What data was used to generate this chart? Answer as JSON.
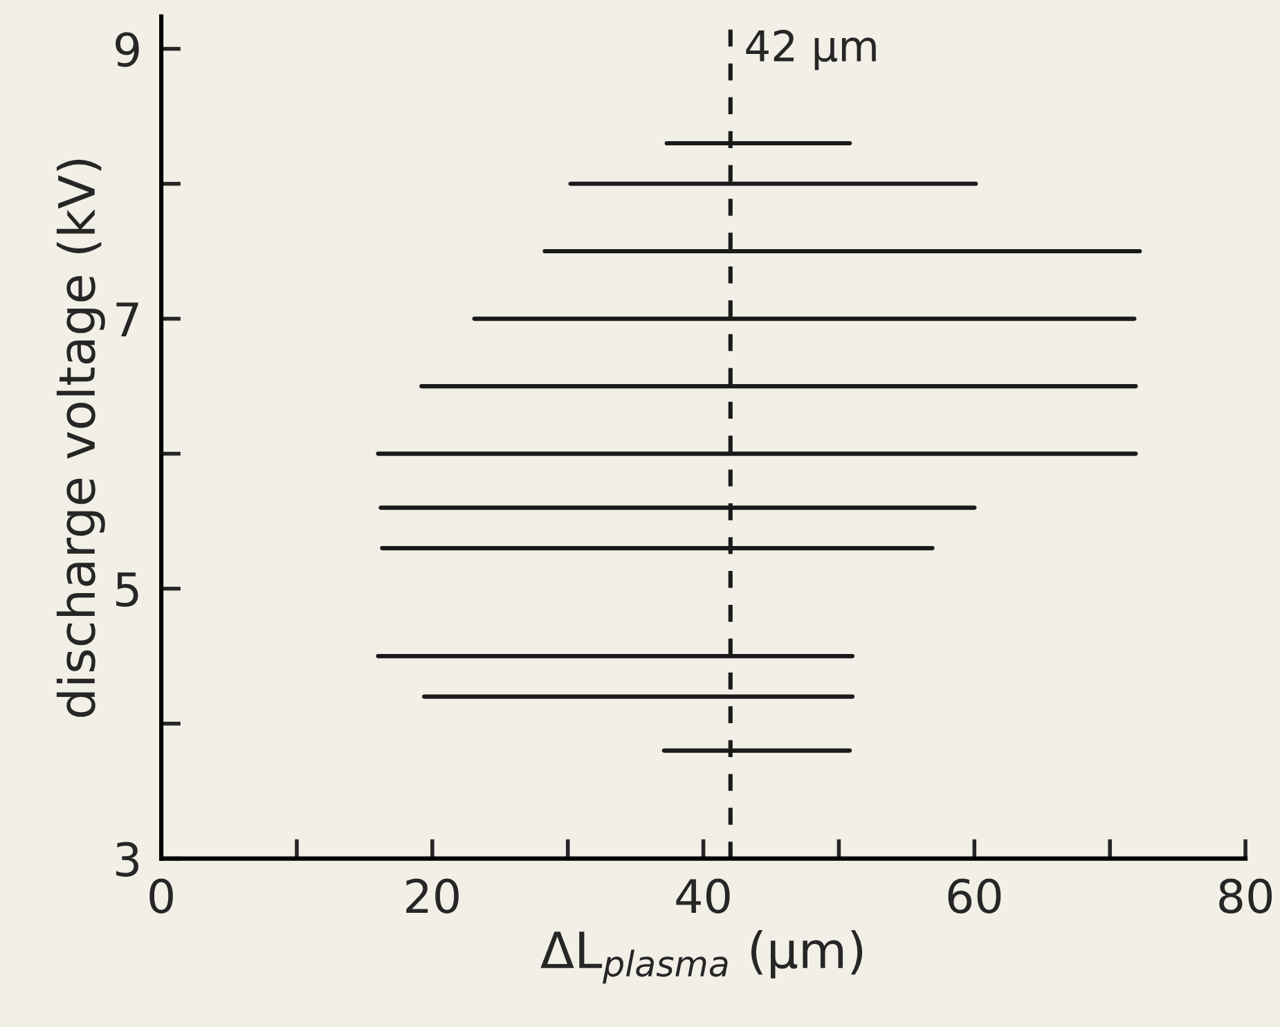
{
  "chart_data": {
    "type": "line",
    "xlabel": "ΔL$_{plasma}$ (μm)",
    "ylabel": "discharge voltage (kV)",
    "series": [
      {
        "color": "#1a1a1a",
        "x": [
          37.3,
          50.8
        ],
        "values": [
          8.3,
          8.3
        ]
      },
      {
        "color": "#1a1a1a",
        "x": [
          30.2,
          60.1
        ],
        "values": [
          8.0,
          8.0
        ]
      },
      {
        "color": "#1a1a1a",
        "x": [
          28.3,
          72.2
        ],
        "values": [
          7.5,
          7.5
        ]
      },
      {
        "color": "#1a1a1a",
        "x": [
          23.1,
          71.8
        ],
        "values": [
          7.0,
          7.0
        ]
      },
      {
        "color": "#1a1a1a",
        "x": [
          19.2,
          71.9
        ],
        "values": [
          6.5,
          6.5
        ]
      },
      {
        "color": "#1a1a1a",
        "x": [
          16.0,
          71.9
        ],
        "values": [
          6.0,
          6.0
        ]
      },
      {
        "color": "#1a1a1a",
        "x": [
          16.2,
          60.0
        ],
        "values": [
          5.6,
          5.6
        ]
      },
      {
        "color": "#1a1a1a",
        "x": [
          16.3,
          56.9
        ],
        "values": [
          5.3,
          5.3
        ]
      },
      {
        "color": "#1a1a1a",
        "x": [
          16.0,
          51.0
        ],
        "values": [
          4.5,
          4.5
        ]
      },
      {
        "color": "#1a1a1a",
        "x": [
          19.4,
          51.0
        ],
        "values": [
          4.2,
          4.2
        ]
      },
      {
        "color": "#1a1a1a",
        "x": [
          37.1,
          50.8
        ],
        "values": [
          3.8,
          3.8
        ]
      }
    ],
    "ref_lines": [
      {
        "axis": "x",
        "value": 42,
        "label": "42 μm",
        "color": "#1a1a1a",
        "line_style": "dashed"
      }
    ],
    "xlim": [
      0,
      80
    ],
    "xticks": [
      0,
      {
        "value": 10,
        "label": null
      },
      20,
      {
        "value": 30,
        "label": null
      },
      40,
      {
        "value": 50,
        "label": null
      },
      60,
      {
        "value": 70,
        "label": null
      },
      80
    ],
    "ylim": [
      3,
      9.24
    ],
    "yticks": [
      3,
      {
        "value": 4,
        "label": null
      },
      5,
      {
        "value": 6,
        "label": null
      },
      7,
      {
        "value": 8,
        "label": null
      },
      9
    ],
    "grid": false,
    "legend": false,
    "marker": "none",
    "line_style": "solid"
  }
}
